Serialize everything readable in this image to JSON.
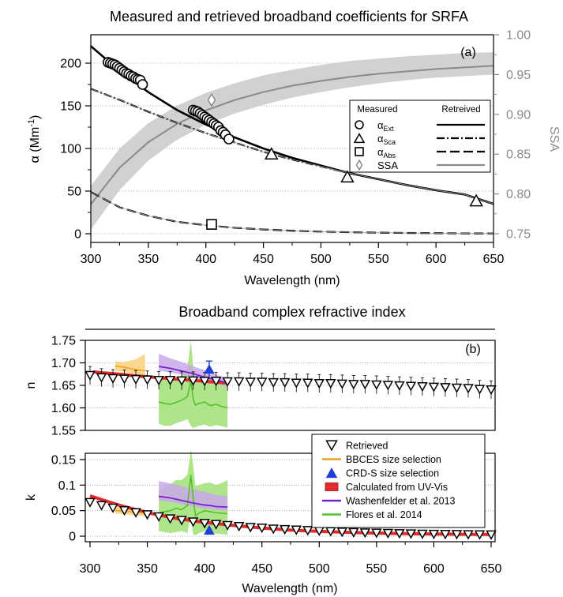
{
  "chart_data": [
    {
      "type": "line",
      "title": "Measured and retrieved broadband coefficients for SRFA",
      "panel_label": "(a)",
      "xlabel": "Wavelength (nm)",
      "ylabel": "α (Mm⁻¹)",
      "ylabel_parts": {
        "base": "α (Mm",
        "exp": "-1",
        "close": ")"
      },
      "y2label": "SSA",
      "xlim": [
        300,
        650
      ],
      "ylim": [
        -7,
        235
      ],
      "y2lim": [
        0.75,
        1.0
      ],
      "xticks": [
        "300",
        "350",
        "400",
        "450",
        "500",
        "550",
        "600",
        "650"
      ],
      "yticks": [
        "0",
        "50",
        "100",
        "150",
        "200"
      ],
      "y2ticks": [
        "0.75",
        "0.80",
        "0.85",
        "0.90",
        "0.95",
        "1.00"
      ],
      "grid": true,
      "legend": {
        "placement": "center-right",
        "header_measured": "Measured",
        "header_retrieved": "Retreived",
        "entries": [
          {
            "symbol": "circle",
            "base": "α",
            "sub": "Ext",
            "line": "solid"
          },
          {
            "symbol": "triangle",
            "base": "α",
            "sub": "Sca",
            "line": "dash-dot"
          },
          {
            "symbol": "square",
            "base": "α",
            "sub": "Abs",
            "line": "dash"
          },
          {
            "symbol": "diamond",
            "base": "SSA",
            "sub": "",
            "line": "gray"
          }
        ]
      },
      "series": [
        {
          "key": "ext_fit",
          "role": "retrieved",
          "x": [
            300,
            325,
            350,
            375,
            400,
            425,
            450,
            475,
            500,
            525,
            550,
            575,
            600,
            625,
            650
          ],
          "y": [
            220,
            191,
            166,
            145,
            128,
            113,
            100,
            89,
            80,
            71,
            64,
            57,
            51,
            46,
            35
          ]
        },
        {
          "key": "sca_fit",
          "role": "retrieved",
          "x": [
            300,
            325,
            350,
            375,
            400,
            425,
            450,
            475,
            500,
            525,
            550,
            575,
            600,
            625,
            650
          ],
          "y": [
            170,
            157,
            143,
            130,
            118,
            107,
            96,
            87,
            79,
            71,
            64,
            57,
            51,
            46,
            35
          ]
        },
        {
          "key": "abs_fit",
          "role": "retrieved",
          "x": [
            300,
            325,
            350,
            375,
            400,
            425,
            450,
            475,
            500,
            525,
            550,
            575,
            600,
            625,
            650
          ],
          "y": [
            49,
            31,
            21,
            14,
            10,
            7,
            5,
            3.5,
            2.5,
            1.8,
            1.3,
            0.9,
            0.6,
            0.4,
            0.3
          ]
        },
        {
          "key": "ssa_fit",
          "role": "retrieved",
          "axis": "y2",
          "x": [
            300,
            325,
            350,
            375,
            400,
            425,
            450,
            475,
            500,
            525,
            550,
            575,
            600,
            625,
            650
          ],
          "y": [
            0.787,
            0.833,
            0.865,
            0.888,
            0.905,
            0.918,
            0.928,
            0.936,
            0.942,
            0.947,
            0.951,
            0.954,
            0.957,
            0.959,
            0.961
          ],
          "band_lo": [
            0.755,
            0.805,
            0.842,
            0.868,
            0.887,
            0.901,
            0.912,
            0.921,
            0.928,
            0.934,
            0.939,
            0.943,
            0.946,
            0.948,
            0.95
          ],
          "band_hi": [
            0.81,
            0.857,
            0.889,
            0.911,
            0.927,
            0.939,
            0.949,
            0.956,
            0.962,
            0.967,
            0.97,
            0.973,
            0.975,
            0.977,
            0.978
          ]
        },
        {
          "key": "ext_meas",
          "role": "measured",
          "marker": "circle",
          "x": [
            315,
            317,
            319,
            321,
            323,
            325,
            327,
            329,
            331,
            333,
            335,
            337,
            339,
            341,
            343,
            345,
            389,
            391,
            393,
            395,
            397,
            399,
            401,
            403,
            405,
            407,
            409,
            411,
            413,
            415,
            417,
            420
          ],
          "y": [
            201,
            200,
            199,
            198,
            196,
            194,
            192,
            190,
            188,
            187,
            185,
            184,
            182,
            181,
            180,
            175,
            145,
            144,
            143,
            141,
            139,
            137,
            135,
            133,
            131,
            129,
            127,
            125,
            121,
            119,
            116,
            111
          ]
        },
        {
          "key": "sca_meas",
          "role": "measured",
          "marker": "triangle",
          "x": [
            457,
            523,
            635
          ],
          "y": [
            94,
            67,
            39
          ]
        },
        {
          "key": "abs_meas",
          "role": "measured",
          "marker": "square",
          "x": [
            405
          ],
          "y": [
            11
          ]
        },
        {
          "key": "ssa_meas",
          "role": "measured",
          "marker": "diamond",
          "axis": "y2",
          "x": [
            405
          ],
          "y": [
            0.918
          ]
        }
      ]
    },
    {
      "type": "line",
      "title": "Broadband complex refractive index",
      "panel_label": "(b)",
      "xlabel": "Wavelength (nm)",
      "xlim": [
        300,
        650
      ],
      "xticks": [
        "300",
        "350",
        "400",
        "450",
        "500",
        "550",
        "600",
        "650"
      ],
      "grid": true,
      "subplots": [
        {
          "key": "n",
          "ylabel": "n",
          "ylim": [
            1.55,
            1.75
          ],
          "yticks": [
            "1.55",
            "1.60",
            "1.65",
            "1.70",
            "1.75"
          ],
          "retrieved": {
            "x": [
              300,
              310,
              320,
              330,
              340,
              350,
              360,
              370,
              380,
              390,
              400,
              410,
              420,
              430,
              440,
              450,
              460,
              470,
              480,
              490,
              500,
              510,
              520,
              530,
              540,
              550,
              560,
              570,
              580,
              590,
              600,
              610,
              620,
              630,
              640,
              650
            ],
            "y": [
              1.672,
              1.667,
              1.665,
              1.664,
              1.663,
              1.662,
              1.661,
              1.661,
              1.66,
              1.66,
              1.659,
              1.659,
              1.658,
              1.658,
              1.657,
              1.657,
              1.656,
              1.656,
              1.655,
              1.655,
              1.654,
              1.654,
              1.653,
              1.652,
              1.652,
              1.651,
              1.65,
              1.649,
              1.648,
              1.647,
              1.646,
              1.645,
              1.644,
              1.643,
              1.641,
              1.64
            ],
            "err": 0.02
          },
          "bbces": {
            "x": [
              322,
              330,
              340,
              348
            ],
            "y": [
              1.693,
              1.69,
              1.685,
              1.683
            ],
            "lo": [
              1.682,
              1.68,
              1.675,
              1.672
            ],
            "hi": [
              1.703,
              1.702,
              1.708,
              1.72
            ]
          },
          "crds": {
            "x": 404,
            "y": 1.686,
            "err": 0.018
          },
          "uvvis": {
            "x": [
              303,
              310,
              320,
              330,
              340,
              350,
              360,
              370,
              380,
              390,
              400,
              410,
              420
            ],
            "y": [
              1.68,
              1.678,
              1.676,
              1.674,
              1.671,
              1.669,
              1.667,
              1.665,
              1.663,
              1.661,
              1.659,
              1.657,
              1.655
            ]
          },
          "washenfelder": {
            "x": [
              360,
              370,
              380,
              390,
              400,
              410,
              420
            ],
            "y": [
              1.692,
              1.688,
              1.682,
              1.676,
              1.668,
              1.662,
              1.655
            ],
            "lo": [
              1.683,
              1.678,
              1.674,
              1.668,
              1.66,
              1.654,
              1.646
            ],
            "hi": [
              1.72,
              1.71,
              1.702,
              1.692,
              1.684,
              1.674,
              1.666
            ]
          },
          "flores": {
            "x": [
              360,
              365,
              370,
              375,
              380,
              385,
              388,
              390,
              392,
              395,
              400,
              405,
              410,
              415,
              420
            ],
            "y": [
              1.613,
              1.61,
              1.608,
              1.612,
              1.617,
              1.625,
              1.66,
              1.62,
              1.606,
              1.61,
              1.613,
              1.605,
              1.608,
              1.603,
              1.6
            ],
            "lo": [
              1.565,
              1.56,
              1.56,
              1.566,
              1.57,
              1.575,
              1.56,
              1.555,
              1.557,
              1.56,
              1.563,
              1.558,
              1.562,
              1.559,
              1.556
            ],
            "hi": [
              1.665,
              1.662,
              1.66,
              1.666,
              1.672,
              1.69,
              1.75,
              1.695,
              1.66,
              1.662,
              1.665,
              1.66,
              1.662,
              1.656,
              1.652
            ]
          }
        },
        {
          "key": "k",
          "ylabel": "k",
          "ylim": [
            -0.005,
            0.17
          ],
          "yticks": [
            "0",
            "0.05",
            "0.1",
            "0.15"
          ],
          "retrieved": {
            "x": [
              300,
              310,
              320,
              330,
              340,
              350,
              360,
              370,
              380,
              390,
              400,
              410,
              420,
              430,
              440,
              450,
              460,
              470,
              480,
              490,
              500,
              510,
              520,
              530,
              540,
              550,
              560,
              570,
              580,
              590,
              600,
              610,
              620,
              630,
              640,
              650
            ],
            "y": [
              0.066,
              0.06,
              0.055,
              0.05,
              0.046,
              0.042,
              0.038,
              0.034,
              0.031,
              0.028,
              0.025,
              0.023,
              0.021,
              0.019,
              0.017,
              0.016,
              0.014,
              0.013,
              0.012,
              0.011,
              0.01,
              0.009,
              0.008,
              0.007,
              0.0065,
              0.006,
              0.0055,
              0.005,
              0.0045,
              0.004,
              0.0038,
              0.0035,
              0.0033,
              0.003,
              0.0028,
              0.0026
            ],
            "err": 0.006
          },
          "bbces": {
            "x": [
              322,
              330,
              340,
              348
            ],
            "y": [
              0.05,
              0.049,
              0.047,
              0.045
            ],
            "lo": [
              0.044,
              0.043,
              0.041,
              0.039
            ],
            "hi": [
              0.058,
              0.057,
              0.055,
              0.052
            ]
          },
          "crds": {
            "x": 404,
            "y": 0.012,
            "err": 0
          },
          "uvvis": {
            "x": [
              300,
              325,
              350,
              375,
              400,
              425,
              450,
              475,
              500,
              525,
              550,
              575,
              600,
              625,
              650
            ],
            "y": [
              0.079,
              0.061,
              0.046,
              0.035,
              0.027,
              0.021,
              0.016,
              0.012,
              0.0095,
              0.0075,
              0.006,
              0.005,
              0.0042,
              0.0036,
              0.0032
            ]
          },
          "washenfelder": {
            "x": [
              360,
              370,
              380,
              390,
              400,
              405,
              410,
              420
            ],
            "y": [
              0.078,
              0.075,
              0.07,
              0.065,
              0.061,
              0.06,
              0.058,
              0.057
            ],
            "lo": [
              0.07,
              0.067,
              0.063,
              0.058,
              0.054,
              0.053,
              0.051,
              0.05
            ],
            "hi": [
              0.108,
              0.103,
              0.098,
              0.092,
              0.087,
              0.084,
              0.081,
              0.078
            ]
          },
          "flores": {
            "x": [
              360,
              365,
              370,
              375,
              380,
              385,
              388,
              390,
              392,
              395,
              400,
              405,
              410,
              415,
              420
            ],
            "y": [
              0.045,
              0.048,
              0.05,
              0.055,
              0.052,
              0.06,
              0.12,
              0.075,
              0.04,
              0.045,
              0.05,
              0.048,
              0.046,
              0.045,
              0.044
            ],
            "lo": [
              0.01,
              0.008,
              0.006,
              0.008,
              0.01,
              0.006,
              0.04,
              0.004,
              0.002,
              0.006,
              0.01,
              0.006,
              0.005,
              0.004,
              0.003
            ],
            "hi": [
              0.09,
              0.095,
              0.102,
              0.11,
              0.11,
              0.12,
              0.17,
              0.14,
              0.098,
              0.1,
              0.104,
              0.105,
              0.1,
              0.104,
              0.11
            ]
          }
        }
      ],
      "legend": {
        "placement": "center-right",
        "entries": [
          {
            "label": "Retrieved",
            "symbol": "triangle-down",
            "color": "#000000"
          },
          {
            "label": "BBCES size selection",
            "symbol": "line",
            "color": "#f0a422"
          },
          {
            "label": "CRD-S size selection",
            "symbol": "triangle",
            "color": "#1f3fd6"
          },
          {
            "label": "Calculated from UV-Vis",
            "symbol": "box",
            "color": "#e32b2b"
          },
          {
            "label": "Washenfelder et al. 2013",
            "symbol": "line",
            "color": "#7a24c8"
          },
          {
            "label": "Flores et al. 2014",
            "symbol": "line",
            "color": "#56c02b"
          }
        ]
      }
    }
  ],
  "colors": {
    "ssa": "#8a8a8a",
    "ssa_band": "#d1d1d1",
    "bbces": "#f0a422",
    "bbces_band": "#fbd78e",
    "crds": "#1f3fd6",
    "uvvis": "#e32b2b",
    "wash": "#7a24c8",
    "wash_band": "#c9a8ea",
    "flores": "#56c02b",
    "flores_band": "#a6e27d",
    "grid": "#9a9a9a"
  }
}
